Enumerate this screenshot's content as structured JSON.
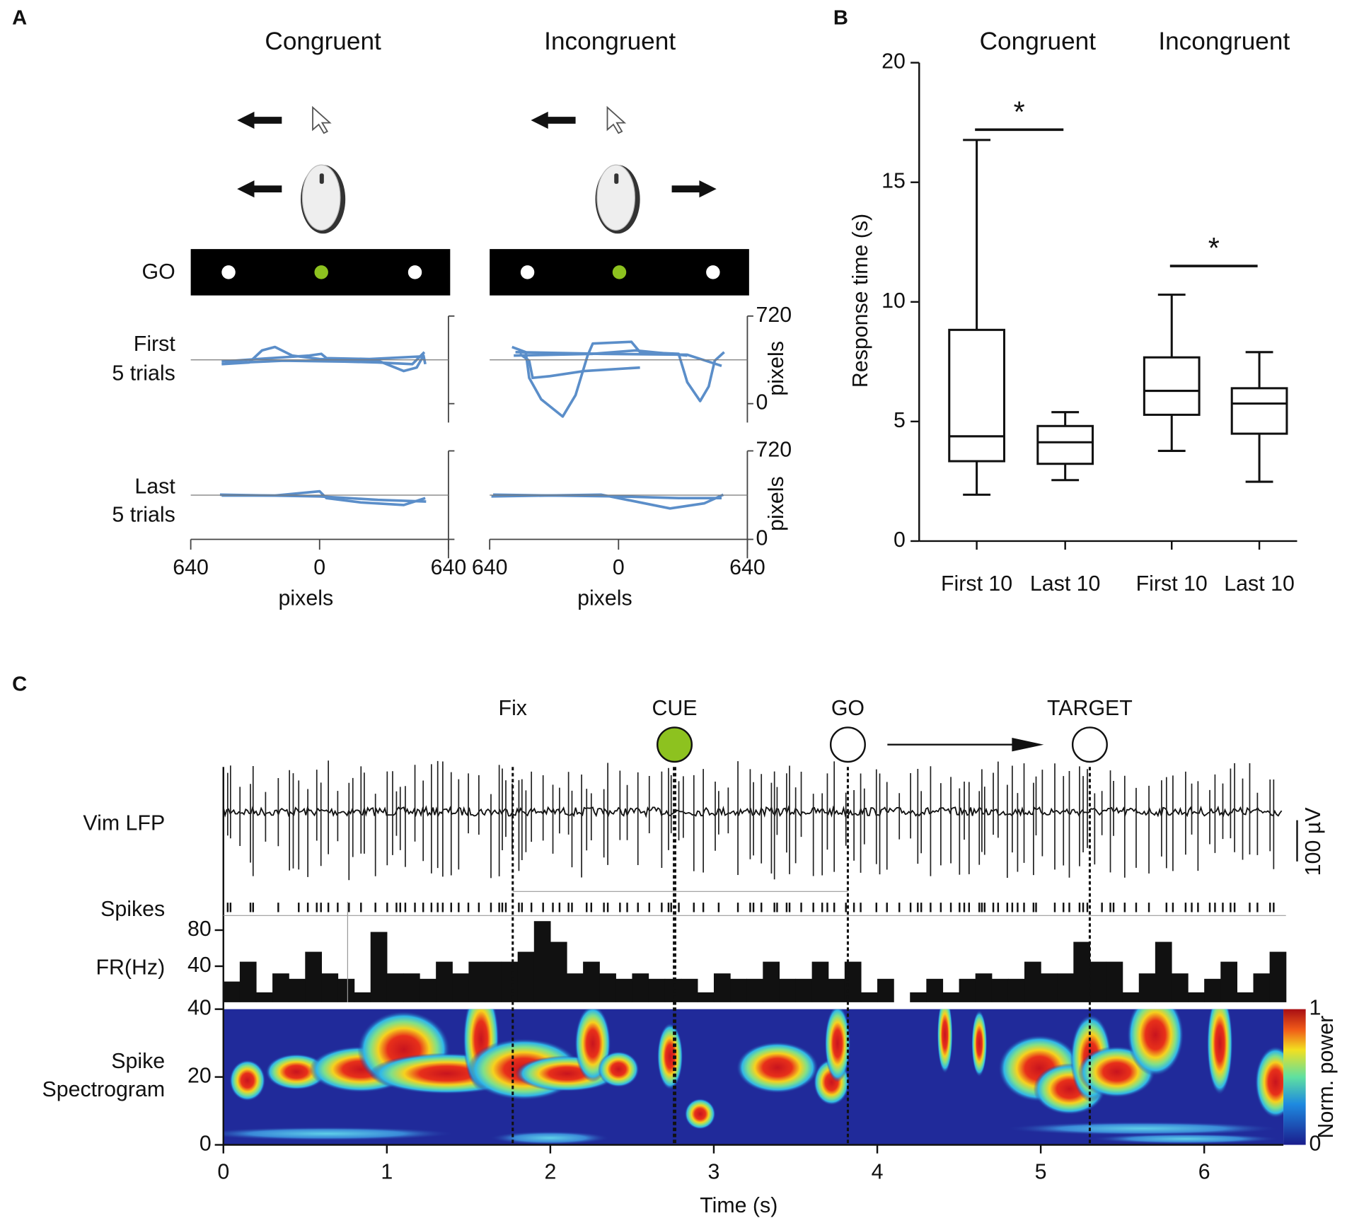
{
  "panel_a": {
    "label": "A",
    "columns": [
      "Congruent",
      "Incongruent"
    ],
    "go_label": "GO",
    "rows": [
      [
        "First",
        "5 trials"
      ],
      [
        "Last",
        "5 trials"
      ]
    ],
    "xlim": [
      -640,
      640
    ],
    "xticks": [
      {
        "value": -640,
        "label": "640"
      },
      0,
      640
    ],
    "xlabel": "pixels",
    "ylim": [
      0,
      720
    ],
    "yticks": [
      0,
      720
    ],
    "ylabel": "pixels"
  },
  "chart_data": {
    "type": "box",
    "label": "B",
    "groups": [
      "Congruent",
      "Incongruent"
    ],
    "categories": [
      "First 10",
      "Last 10",
      "First 10",
      "Last 10"
    ],
    "min": [
      1.94,
      2.55,
      3.77,
      2.48
    ],
    "q1": [
      3.34,
      3.23,
      5.28,
      4.49
    ],
    "median": [
      4.38,
      4.13,
      6.28,
      5.75
    ],
    "q3": [
      8.83,
      4.81,
      7.68,
      6.39
    ],
    "max": [
      16.77,
      5.39,
      10.3,
      7.9
    ],
    "ylabel": "Response time (s)",
    "ylim": [
      0,
      20
    ],
    "yticks": [
      0,
      5,
      10,
      15,
      20
    ],
    "significance": [
      {
        "label": "*",
        "y": 17.2
      },
      {
        "label": "*",
        "y": 11.5
      }
    ],
    "color": "#111111"
  },
  "panel_c": {
    "label": "C",
    "events": [
      {
        "label": "Fix",
        "time": 1.77
      },
      {
        "label": "CUE",
        "time": 2.76
      },
      {
        "label": "GO",
        "time": 3.82
      },
      {
        "label": "TARGET",
        "time": 5.3
      }
    ],
    "rows": {
      "lfp": "Vim LFP",
      "spikes": "Spikes",
      "fr": "FR(Hz)",
      "spectrogram": [
        "Spike",
        "Spectrogram"
      ]
    },
    "scale_bar": "100 µV",
    "xlabel": "Time (s)",
    "xlim": [
      0,
      6.5
    ],
    "xticks": [
      0,
      1,
      2,
      3,
      4,
      5,
      6
    ],
    "fr": {
      "values": [
        23,
        45,
        11,
        32,
        26,
        56,
        32,
        26,
        11,
        78,
        32,
        32,
        26,
        45,
        32,
        45,
        45,
        45,
        56,
        90,
        67,
        32,
        45,
        32,
        26,
        32,
        26,
        26,
        26,
        11,
        32,
        26,
        26,
        45,
        26,
        26,
        45,
        26,
        45,
        11,
        26,
        0,
        11,
        26,
        11,
        26,
        32,
        26,
        26,
        45,
        32,
        32,
        67,
        45,
        45,
        11,
        32,
        67,
        32,
        11,
        26,
        45,
        11,
        32,
        56
      ],
      "ylim": [
        0,
        100
      ],
      "yticks": [
        40,
        80
      ]
    },
    "spectrogram": {
      "ylim": [
        0,
        40
      ],
      "yticks": [
        0,
        20,
        40
      ]
    },
    "colorbar": {
      "label": "Norm. power",
      "ticks": [
        0,
        1
      ]
    }
  }
}
